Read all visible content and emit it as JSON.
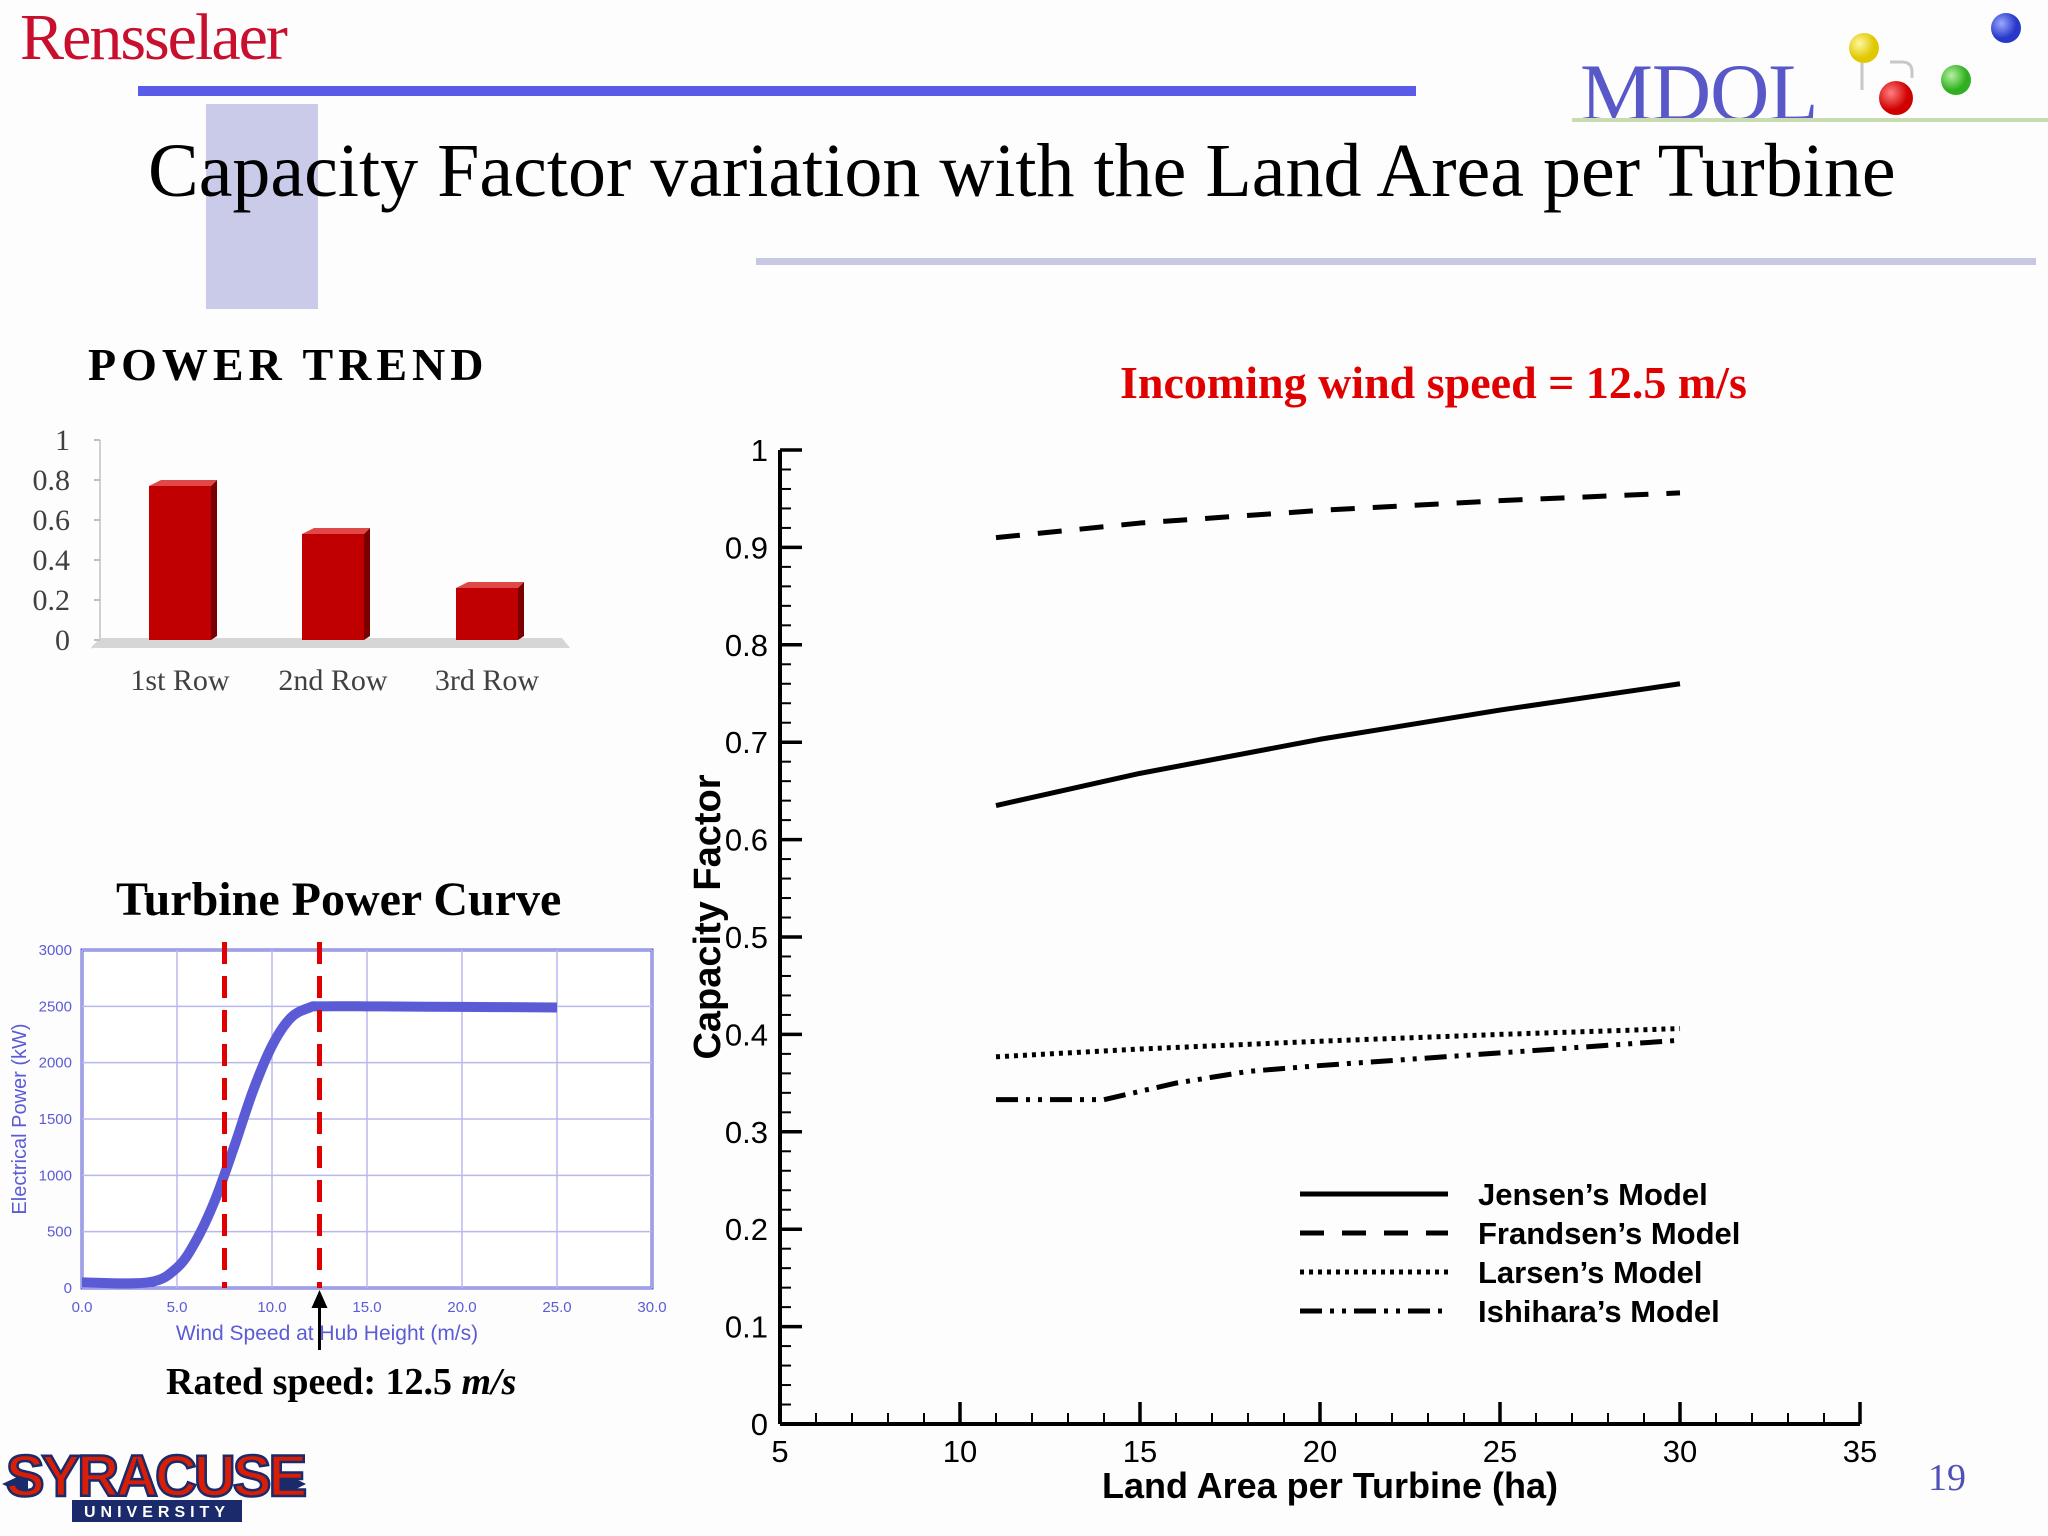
{
  "header": {
    "org_logo_text": "Rensselaer",
    "lab_logo_text": "MDOL",
    "title": "Capacity Factor variation with the Land Area per Turbine",
    "page_number": "19",
    "university_logo_text": "SYRACUSE",
    "university_logo_subtext": "UNIVERSITY"
  },
  "colors": {
    "title_rule": "#5b5bea",
    "highlight_text": "#e00000",
    "bar_fill": "#c00000",
    "power_curve": "#5b5bd6"
  },
  "labels": {
    "power_trend": "POWER TREND",
    "wind_speed": "Incoming wind speed = 12.5 m/s",
    "turbine_power_curve": "Turbine Power Curve",
    "rated_speed_prefix": "Rated speed: 12.5 ",
    "rated_speed_unit": "m/s"
  },
  "chart_data": [
    {
      "id": "power-trend",
      "type": "bar",
      "categories": [
        "1st Row",
        "2nd Row",
        "3rd Row"
      ],
      "values": [
        0.77,
        0.53,
        0.26
      ],
      "ylim": [
        0,
        1
      ],
      "yticks": [
        "0",
        "0.2",
        "0.4",
        "0.6",
        "0.8",
        "1"
      ]
    },
    {
      "id": "turbine-power-curve",
      "type": "line",
      "xlabel": "Wind Speed at Hub Height (m/s)",
      "ylabel": "Electrical Power (kW)",
      "xlim": [
        0,
        30
      ],
      "ylim": [
        0,
        3000
      ],
      "xticks": [
        "0.0",
        "5.0",
        "10.0",
        "15.0",
        "20.0",
        "25.0",
        "30.0"
      ],
      "yticks": [
        "0",
        "500",
        "1000",
        "1500",
        "2000",
        "2500",
        "3000"
      ],
      "x": [
        0,
        3.5,
        5,
        6,
        7,
        8,
        9,
        10,
        11,
        12,
        12.5,
        15,
        20,
        25
      ],
      "y": [
        50,
        50,
        180,
        420,
        780,
        1250,
        1750,
        2150,
        2400,
        2490,
        2500,
        2500,
        2495,
        2490
      ],
      "markers": [
        7.5,
        12.5
      ],
      "grid": true
    },
    {
      "id": "capacity-factor",
      "type": "line",
      "xlabel": "Land Area per Turbine (ha)",
      "ylabel": "Capacity Factor",
      "xlim": [
        5,
        35
      ],
      "ylim": [
        0,
        1
      ],
      "xticks": [
        "5",
        "10",
        "15",
        "20",
        "25",
        "30",
        "35"
      ],
      "yticks": [
        "0",
        "0.1",
        "0.2",
        "0.3",
        "0.4",
        "0.5",
        "0.6",
        "0.7",
        "0.8",
        "0.9",
        "1"
      ],
      "legend": "bottom-right",
      "series": [
        {
          "name": "Jensen’s Model",
          "style": "solid",
          "x": [
            11,
            15,
            20,
            25,
            30
          ],
          "values": [
            0.635,
            0.668,
            0.703,
            0.733,
            0.76
          ]
        },
        {
          "name": "Frandsen’s Model",
          "style": "dashed",
          "x": [
            11,
            15,
            20,
            25,
            30
          ],
          "values": [
            0.91,
            0.925,
            0.938,
            0.948,
            0.956
          ]
        },
        {
          "name": "Larsen’s Model",
          "style": "dotted",
          "x": [
            11,
            15,
            20,
            25,
            30
          ],
          "values": [
            0.377,
            0.385,
            0.393,
            0.4,
            0.406
          ]
        },
        {
          "name": "Ishihara’s Model",
          "style": "dashdot",
          "x": [
            11,
            14,
            16,
            18,
            20,
            25,
            30
          ],
          "values": [
            0.333,
            0.333,
            0.35,
            0.362,
            0.368,
            0.381,
            0.394
          ]
        }
      ]
    }
  ]
}
